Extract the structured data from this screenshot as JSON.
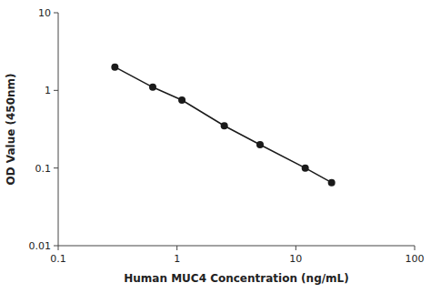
{
  "chart_data": {
    "type": "line",
    "xlabel": "Human MUC4 Concentration (ng/mL)",
    "ylabel": "OD Value (450nm)",
    "x": [
      0.3,
      0.625,
      1.1,
      2.5,
      5.0,
      12.0,
      20.0
    ],
    "values": [
      2.0,
      1.1,
      0.75,
      0.35,
      0.2,
      0.1,
      0.065
    ],
    "color": "#1a1a1a",
    "marker": "circle",
    "log": true,
    "grid": false,
    "xlim": [
      0.1,
      100
    ],
    "ylim": [
      0.01,
      10
    ],
    "xticks": [
      0.1,
      1,
      10,
      100
    ],
    "yticks": [
      0.01,
      0.1,
      1,
      10
    ]
  }
}
